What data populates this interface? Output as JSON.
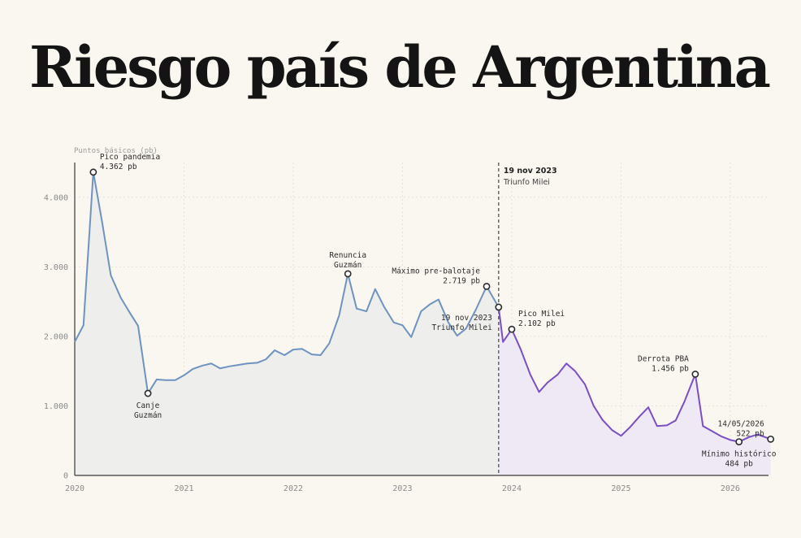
{
  "title": "Riesgo país de Argentina",
  "chart_data": {
    "type": "line",
    "ylabel": "Puntos básicos (pb)",
    "xlabel": "",
    "xlim": [
      2020,
      2026.35
    ],
    "ylim": [
      0,
      4500
    ],
    "x_ticks": [
      2020,
      2021,
      2022,
      2023,
      2024,
      2025,
      2026
    ],
    "x_tick_labels": [
      "2020",
      "2021",
      "2022",
      "2023",
      "2024",
      "2025",
      "2026"
    ],
    "y_ticks": [
      0,
      1000,
      2000,
      3000,
      4000
    ],
    "y_tick_labels": [
      "0",
      "1.000",
      "2.000",
      "3.000",
      "4.000"
    ],
    "grid": true,
    "colors": {
      "pre_milei_line": "#6f93c0",
      "pre_milei_fill": "#eeeeec",
      "milei_line": "#7b4fc4",
      "milei_fill": "#efe8f5",
      "event_line": "#444444"
    },
    "series": [
      {
        "x": [
          2020.0,
          2020.08,
          2020.17,
          2020.25,
          2020.33,
          2020.42,
          2020.5,
          2020.58,
          2020.67,
          2020.75,
          2020.83,
          2020.92,
          2021.0,
          2021.08,
          2021.17,
          2021.25,
          2021.33,
          2021.42,
          2021.5,
          2021.58,
          2021.67,
          2021.75,
          2021.83,
          2021.92,
          2022.0,
          2022.08,
          2022.17,
          2022.25,
          2022.33,
          2022.42,
          2022.5,
          2022.58,
          2022.67,
          2022.75,
          2022.83,
          2022.92,
          2023.0,
          2023.08,
          2023.17,
          2023.25,
          2023.33,
          2023.42,
          2023.5,
          2023.58,
          2023.67,
          2023.77,
          2023.88
        ],
        "values": [
          1920,
          2160,
          4362,
          3650,
          2880,
          2560,
          2350,
          2150,
          1180,
          1380,
          1370,
          1370,
          1440,
          1530,
          1580,
          1610,
          1540,
          1570,
          1590,
          1610,
          1620,
          1670,
          1800,
          1730,
          1810,
          1820,
          1740,
          1730,
          1900,
          2300,
          2900,
          2400,
          2360,
          2680,
          2430,
          2200,
          2160,
          1990,
          2360,
          2460,
          2530,
          2200,
          2010,
          2110,
          2380,
          2719,
          2420
        ]
      },
      {
        "x": [
          2023.88,
          2023.92,
          2024.0,
          2024.08,
          2024.17,
          2024.25,
          2024.33,
          2024.42,
          2024.5,
          2024.58,
          2024.67,
          2024.75,
          2024.83,
          2024.92,
          2025.0,
          2025.08,
          2025.17,
          2025.25,
          2025.33,
          2025.42,
          2025.5,
          2025.58,
          2025.68,
          2025.75,
          2025.83,
          2025.92,
          2026.0,
          2026.08,
          2026.17,
          2026.25,
          2026.37
        ],
        "values": [
          2420,
          1920,
          2102,
          1820,
          1450,
          1200,
          1340,
          1450,
          1610,
          1500,
          1310,
          1000,
          800,
          650,
          570,
          690,
          850,
          980,
          710,
          720,
          790,
          1060,
          1456,
          710,
          640,
          560,
          510,
          484,
          550,
          590,
          522
        ]
      }
    ],
    "event": {
      "x": 2023.88,
      "date_label": "19 nov 2023",
      "sub_label": "Triunfo Milei"
    },
    "annotations": [
      {
        "x": 2020.17,
        "y": 4362,
        "lines": [
          "Pico pandemia",
          "4.362 pb"
        ],
        "pos": "above-right"
      },
      {
        "x": 2020.67,
        "y": 1180,
        "lines": [
          "Canje",
          "Guzmán"
        ],
        "pos": "below"
      },
      {
        "x": 2022.5,
        "y": 2900,
        "lines": [
          "Renuncia",
          "Guzmán"
        ],
        "pos": "above"
      },
      {
        "x": 2023.77,
        "y": 2719,
        "lines": [
          "Máximo pre-balotaje",
          "2.719 pb"
        ],
        "pos": "above-left"
      },
      {
        "x": 2023.88,
        "y": 2420,
        "lines": [
          "19 nov 2023",
          "Triunfo Milei"
        ],
        "pos": "below-left"
      },
      {
        "x": 2024.0,
        "y": 2102,
        "lines": [
          "Pico Milei",
          "2.102 pb"
        ],
        "pos": "above-right"
      },
      {
        "x": 2025.68,
        "y": 1456,
        "lines": [
          "Derrota PBA",
          "1.456 pb"
        ],
        "pos": "above-left"
      },
      {
        "x": 2026.08,
        "y": 484,
        "lines": [
          "Mínimo histórico",
          "484 pb"
        ],
        "pos": "below"
      },
      {
        "x": 2026.37,
        "y": 522,
        "lines": [
          "14/05/2026",
          "522 pb"
        ],
        "pos": "above-left"
      }
    ]
  }
}
